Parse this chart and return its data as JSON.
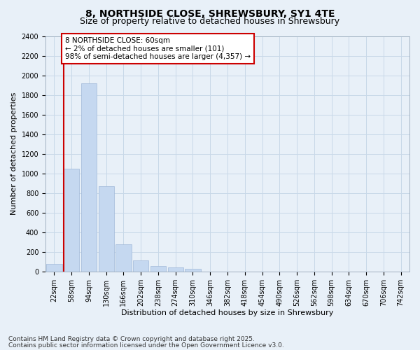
{
  "title1": "8, NORTHSIDE CLOSE, SHREWSBURY, SY1 4TE",
  "title2": "Size of property relative to detached houses in Shrewsbury",
  "xlabel": "Distribution of detached houses by size in Shrewsbury",
  "ylabel": "Number of detached properties",
  "categories": [
    "22sqm",
    "58sqm",
    "94sqm",
    "130sqm",
    "166sqm",
    "202sqm",
    "238sqm",
    "274sqm",
    "310sqm",
    "346sqm",
    "382sqm",
    "418sqm",
    "454sqm",
    "490sqm",
    "526sqm",
    "562sqm",
    "598sqm",
    "634sqm",
    "670sqm",
    "706sqm",
    "742sqm"
  ],
  "bar_values": [
    75,
    1050,
    1920,
    870,
    280,
    110,
    55,
    40,
    25,
    0,
    0,
    0,
    0,
    0,
    0,
    0,
    0,
    0,
    0,
    0,
    0
  ],
  "bar_color": "#c5d8f0",
  "bar_edge_color": "#a0b8d8",
  "grid_color": "#c8d8e8",
  "background_color": "#e8f0f8",
  "annotation_text": "8 NORTHSIDE CLOSE: 60sqm\n← 2% of detached houses are smaller (101)\n98% of semi-detached houses are larger (4,357) →",
  "annotation_box_color": "#ffffff",
  "annotation_border_color": "#cc0000",
  "subject_line_color": "#cc0000",
  "ylim": [
    0,
    2400
  ],
  "yticks": [
    0,
    200,
    400,
    600,
    800,
    1000,
    1200,
    1400,
    1600,
    1800,
    2000,
    2200,
    2400
  ],
  "footer1": "Contains HM Land Registry data © Crown copyright and database right 2025.",
  "footer2": "Contains public sector information licensed under the Open Government Licence v3.0.",
  "title1_fontsize": 10,
  "title2_fontsize": 9,
  "axis_label_fontsize": 8,
  "tick_fontsize": 7,
  "annotation_fontsize": 7.5,
  "footer_fontsize": 6.5
}
